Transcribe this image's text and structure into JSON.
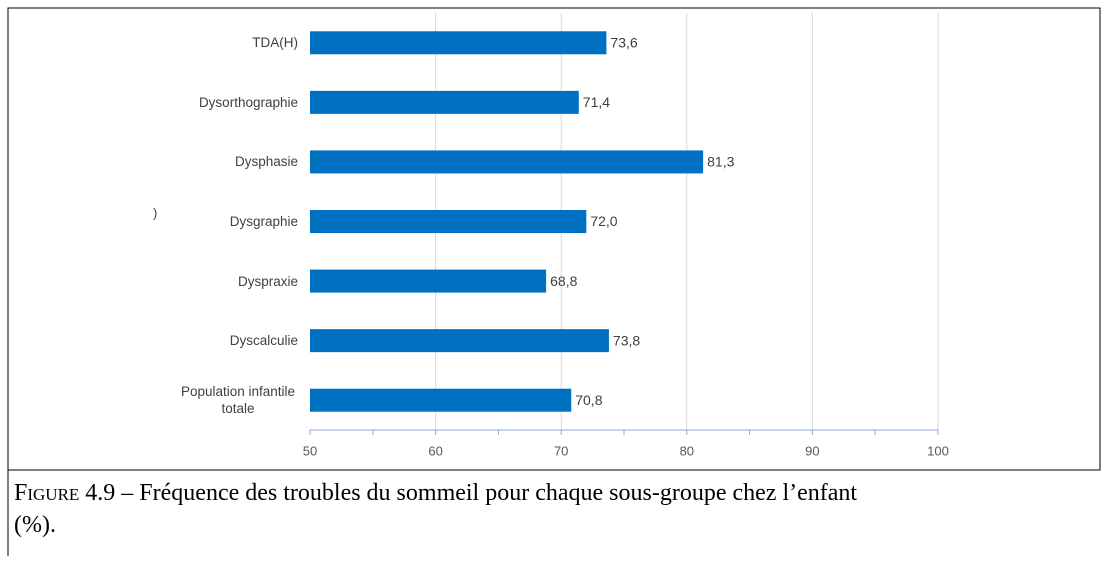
{
  "chart_data": {
    "type": "barh",
    "categories": [
      "TDA(H)",
      "Dysorthographie",
      "Dysphasie",
      "Dysgraphie",
      "Dyspraxie",
      "Dyscalculie",
      "Population infantile totale"
    ],
    "values": [
      73.6,
      71.4,
      81.3,
      72.0,
      68.8,
      73.8,
      70.8
    ],
    "value_labels": [
      "73,6",
      "71,4",
      "81,3",
      "72,0",
      "68,8",
      "73,8",
      "70,8"
    ],
    "color": "#0070c0",
    "xlim": [
      50,
      100
    ],
    "xticks": [
      50,
      60,
      70,
      80,
      90,
      100
    ],
    "xminor_ticks": [
      55,
      65,
      75,
      85,
      95
    ],
    "grid": true,
    "annotation": ")"
  },
  "caption": {
    "label": "Figure 4.9",
    "text": "– Fréquence des troubles du sommeil pour chaque sous-groupe chez l’enfant",
    "text_line2": "(%)."
  }
}
